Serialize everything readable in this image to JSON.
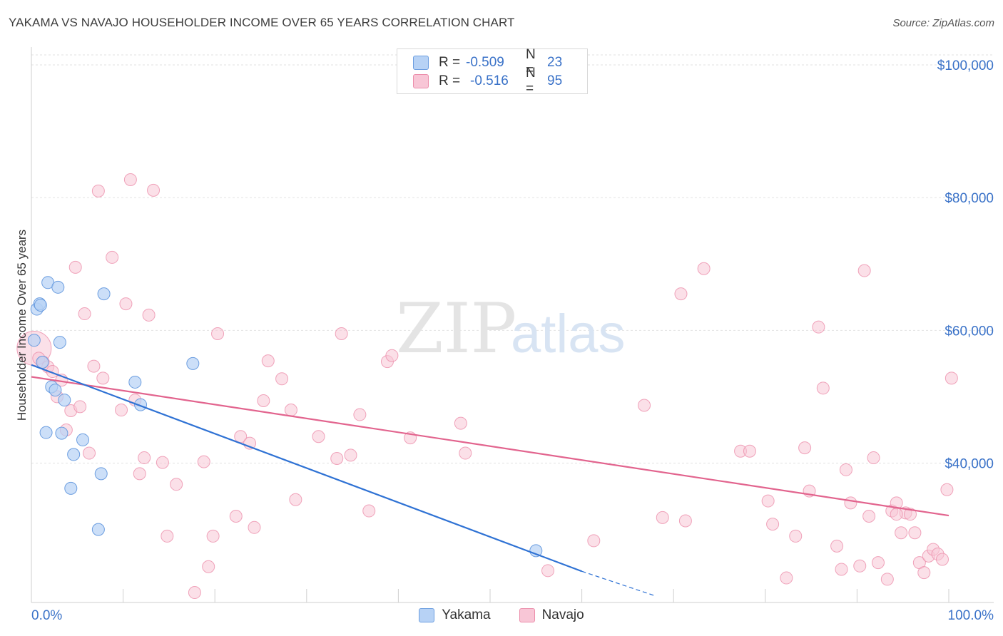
{
  "header": {
    "title": "YAKAMA VS NAVAJO HOUSEHOLDER INCOME OVER 65 YEARS CORRELATION CHART",
    "source": "Source: ZipAtlas.com"
  },
  "legend": {
    "yakama": {
      "r_label": "R =",
      "r_value": "-0.509",
      "n_label": "N =",
      "n_value": "23"
    },
    "navajo": {
      "r_label": "R =",
      "r_value": "-0.516",
      "n_label": "N =",
      "n_value": "95"
    }
  },
  "colors": {
    "yakama_fill": "#b7d2f5",
    "yakama_stroke": "#6c9ee0",
    "yakama_line": "#2f72d4",
    "navajo_fill": "#f8c6d6",
    "navajo_stroke": "#ec8eab",
    "navajo_line": "#e2648e",
    "axis_label": "#3a72c8"
  },
  "watermark": {
    "zip": "ZIP",
    "atlas": "atlas"
  },
  "chart_data": {
    "type": "scatter",
    "title": "YAKAMA VS NAVAJO HOUSEHOLDER INCOME OVER 65 YEARS CORRELATION CHART",
    "xlabel": "",
    "ylabel": "Householder Income Over 65 years",
    "xlim": [
      0,
      100
    ],
    "ylim": [
      19000,
      101500
    ],
    "x_tick_labels": [
      "0.0%",
      "100.0%"
    ],
    "y_ticks": [
      40000,
      60000,
      80000,
      100000
    ],
    "y_tick_labels": [
      "$40,000",
      "$60,000",
      "$80,000",
      "$100,000"
    ],
    "grid": true,
    "legend_position": "top-center",
    "bottom_legend": [
      "Yakama",
      "Navajo"
    ],
    "series": [
      {
        "name": "Yakama",
        "r": -0.509,
        "n": 23,
        "points": [
          [
            0.3,
            58.5
          ],
          [
            0.6,
            63.2
          ],
          [
            0.9,
            64.0
          ],
          [
            1.2,
            55.2
          ],
          [
            1.6,
            44.6
          ],
          [
            1.8,
            67.2
          ],
          [
            2.2,
            51.5
          ],
          [
            2.6,
            51.0
          ],
          [
            2.9,
            66.5
          ],
          [
            3.1,
            58.2
          ],
          [
            3.3,
            44.5
          ],
          [
            3.6,
            49.5
          ],
          [
            4.3,
            36.2
          ],
          [
            4.6,
            41.3
          ],
          [
            5.6,
            43.5
          ],
          [
            7.3,
            30.0
          ],
          [
            7.6,
            38.4
          ],
          [
            7.9,
            65.5
          ],
          [
            11.3,
            52.2
          ],
          [
            11.9,
            48.8
          ],
          [
            17.6,
            55.0
          ],
          [
            55.0,
            26.8
          ],
          [
            1.0,
            63.8
          ]
        ],
        "trend": {
          "x0": 0,
          "y0": 54.8,
          "x1": 60.0,
          "y1": 23.7
        },
        "trend_dashed": {
          "x0": 60.0,
          "y0": 23.7,
          "x1": 68.0,
          "y1": 20.0
        }
      },
      {
        "name": "Navajo",
        "r": -0.516,
        "n": 95,
        "points": [
          [
            0.3,
            57.3
          ],
          [
            0.8,
            55.8
          ],
          [
            1.3,
            55.2
          ],
          [
            1.8,
            54.5
          ],
          [
            2.3,
            53.8
          ],
          [
            2.8,
            50.0
          ],
          [
            3.3,
            52.5
          ],
          [
            3.8,
            45.0
          ],
          [
            4.3,
            47.9
          ],
          [
            4.8,
            69.5
          ],
          [
            5.3,
            48.5
          ],
          [
            5.8,
            62.5
          ],
          [
            6.3,
            41.5
          ],
          [
            6.8,
            54.6
          ],
          [
            7.3,
            81.0
          ],
          [
            7.8,
            52.8
          ],
          [
            8.8,
            71.0
          ],
          [
            9.8,
            48.0
          ],
          [
            10.3,
            64.0
          ],
          [
            10.8,
            82.7
          ],
          [
            11.3,
            49.5
          ],
          [
            11.8,
            38.4
          ],
          [
            12.3,
            40.8
          ],
          [
            12.8,
            62.3
          ],
          [
            13.3,
            81.1
          ],
          [
            14.3,
            40.1
          ],
          [
            14.8,
            29.0
          ],
          [
            15.8,
            36.8
          ],
          [
            17.8,
            20.5
          ],
          [
            18.8,
            40.2
          ],
          [
            19.3,
            24.4
          ],
          [
            19.8,
            29.0
          ],
          [
            20.3,
            59.5
          ],
          [
            22.3,
            32.0
          ],
          [
            22.8,
            44.0
          ],
          [
            23.8,
            43.0
          ],
          [
            24.3,
            30.3
          ],
          [
            25.3,
            49.4
          ],
          [
            25.8,
            55.4
          ],
          [
            27.3,
            52.7
          ],
          [
            28.3,
            48.0
          ],
          [
            28.8,
            34.5
          ],
          [
            31.3,
            44.0
          ],
          [
            33.3,
            40.7
          ],
          [
            33.8,
            59.5
          ],
          [
            34.8,
            41.2
          ],
          [
            35.8,
            47.3
          ],
          [
            36.8,
            32.8
          ],
          [
            38.8,
            55.3
          ],
          [
            39.3,
            56.2
          ],
          [
            41.3,
            43.8
          ],
          [
            46.8,
            46.0
          ],
          [
            47.3,
            41.5
          ],
          [
            56.3,
            23.8
          ],
          [
            61.3,
            28.3
          ],
          [
            66.8,
            48.7
          ],
          [
            68.8,
            31.8
          ],
          [
            70.8,
            65.5
          ],
          [
            71.3,
            31.3
          ],
          [
            73.3,
            69.3
          ],
          [
            77.3,
            41.8
          ],
          [
            78.3,
            41.8
          ],
          [
            80.3,
            34.3
          ],
          [
            80.8,
            30.8
          ],
          [
            82.3,
            22.7
          ],
          [
            83.3,
            29.0
          ],
          [
            84.3,
            42.3
          ],
          [
            84.8,
            35.8
          ],
          [
            85.8,
            60.5
          ],
          [
            86.3,
            51.3
          ],
          [
            87.8,
            27.5
          ],
          [
            88.3,
            24.0
          ],
          [
            88.8,
            39.0
          ],
          [
            89.3,
            34.0
          ],
          [
            90.3,
            24.5
          ],
          [
            90.8,
            69.0
          ],
          [
            91.3,
            32.0
          ],
          [
            91.8,
            40.8
          ],
          [
            92.3,
            25.0
          ],
          [
            93.3,
            22.5
          ],
          [
            93.8,
            32.8
          ],
          [
            94.3,
            34.0
          ],
          [
            94.8,
            29.5
          ],
          [
            95.3,
            32.5
          ],
          [
            95.8,
            32.3
          ],
          [
            96.3,
            29.5
          ],
          [
            96.8,
            25.0
          ],
          [
            97.3,
            23.5
          ],
          [
            97.8,
            26.0
          ],
          [
            98.3,
            27.0
          ],
          [
            98.8,
            26.3
          ],
          [
            99.3,
            25.5
          ],
          [
            99.8,
            36.0
          ],
          [
            100.3,
            52.8
          ],
          [
            94.3,
            32.3
          ]
        ],
        "trend": {
          "x0": 0,
          "y0": 53.0,
          "x1": 100,
          "y1": 32.1
        }
      }
    ]
  }
}
